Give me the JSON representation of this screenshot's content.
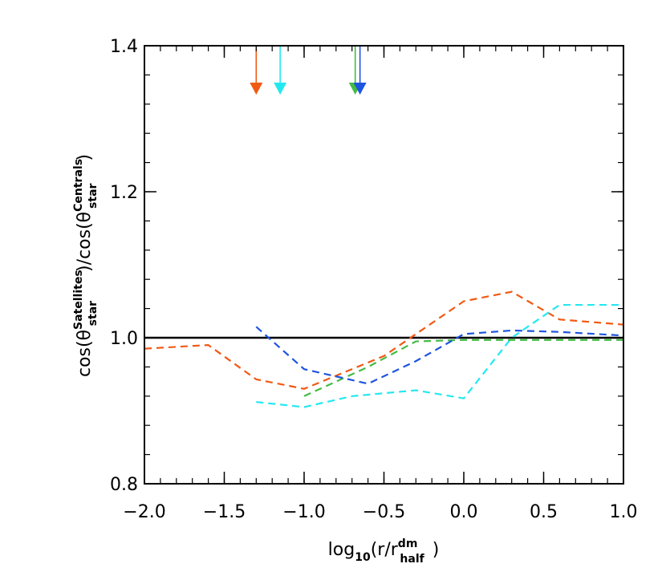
{
  "chart_data": {
    "type": "line",
    "title": "",
    "xlabel": {
      "prefix": "log",
      "sub": "10",
      "open": "(r/r",
      "sup": "dm",
      "sub2": "half",
      "close": ")"
    },
    "ylabel": {
      "part1": "cos(θ",
      "sub1": "star",
      "sup1": "Satellites",
      "part2": ")/cos(θ",
      "sub2": "star",
      "sup2": "Centrals",
      "part3": ")"
    },
    "xlim": [
      -2.0,
      1.0
    ],
    "ylim": [
      0.8,
      1.4
    ],
    "x_ticks": [
      -2.0,
      -1.5,
      -1.0,
      -0.5,
      0.0,
      0.5,
      1.0
    ],
    "x_tick_labels": [
      "−2.0",
      "−1.5",
      "−1.0",
      "−0.5",
      "0.0",
      "0.5",
      "1.0"
    ],
    "y_ticks": [
      0.8,
      1.0,
      1.2,
      1.4
    ],
    "y_tick_labels": [
      "0.8",
      "1.0",
      "1.2",
      "1.4"
    ],
    "grid": false,
    "reference_line": {
      "y": 1.0,
      "color": "#000000"
    },
    "series": [
      {
        "color": "#f05a14",
        "style": "dashed",
        "x": [
          -2.0,
          -1.6,
          -1.3,
          -1.0,
          -0.5,
          0.0,
          0.3,
          0.6,
          1.0
        ],
        "y": [
          0.985,
          0.99,
          0.943,
          0.93,
          0.975,
          1.05,
          1.063,
          1.025,
          1.018
        ],
        "arrow_x": -1.3
      },
      {
        "color": "#24e8f0",
        "style": "dashed",
        "x": [
          -1.3,
          -1.0,
          -0.7,
          -0.3,
          0.0,
          0.3,
          0.6,
          1.0
        ],
        "y": [
          0.912,
          0.905,
          0.92,
          0.928,
          0.917,
          1.0,
          1.045,
          1.045
        ],
        "arrow_x": -1.15
      },
      {
        "color": "#44bb44",
        "style": "dashed",
        "x": [
          -1.0,
          -0.6,
          -0.3,
          0.0,
          0.5,
          1.0
        ],
        "y": [
          0.92,
          0.96,
          0.995,
          0.997,
          0.997,
          0.997
        ],
        "arrow_x": -0.68
      },
      {
        "color": "#1e55e0",
        "style": "dashed",
        "x": [
          -1.3,
          -1.0,
          -0.6,
          -0.3,
          0.0,
          0.3,
          0.6,
          1.0
        ],
        "y": [
          1.015,
          0.957,
          0.937,
          0.968,
          1.005,
          1.01,
          1.008,
          1.003
        ],
        "arrow_x": -0.65
      }
    ],
    "legend": "none"
  }
}
